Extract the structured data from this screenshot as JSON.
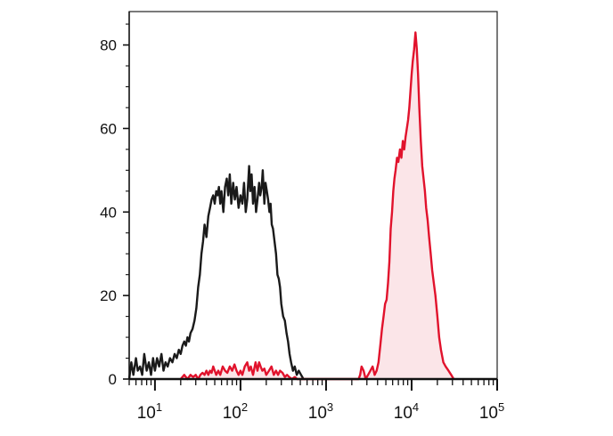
{
  "chart_data": {
    "type": "area",
    "title": "",
    "xlabel": "",
    "ylabel": "",
    "x_scale": "log",
    "xlim": [
      5,
      100000
    ],
    "ylim": [
      0,
      88
    ],
    "yticks": [
      {
        "value": 0,
        "label": "0"
      },
      {
        "value": 20,
        "label": "20"
      },
      {
        "value": 40,
        "label": "40"
      },
      {
        "value": 60,
        "label": "60"
      },
      {
        "value": 80,
        "label": "80"
      }
    ],
    "xticks": [
      {
        "value": 10,
        "base": "10",
        "exp": "1"
      },
      {
        "value": 100,
        "base": "10",
        "exp": "2"
      },
      {
        "value": 1000,
        "base": "10",
        "exp": "3"
      },
      {
        "value": 10000,
        "base": "10",
        "exp": "4"
      },
      {
        "value": 100000,
        "base": "10",
        "exp": "5"
      }
    ],
    "grid": false,
    "series": [
      {
        "color": "#1a1a1a",
        "fill": "none",
        "points": [
          [
            5,
            0
          ],
          [
            5.3,
            4
          ],
          [
            5.6,
            1
          ],
          [
            6,
            5
          ],
          [
            6.3,
            2
          ],
          [
            6.7,
            3
          ],
          [
            7.1,
            1
          ],
          [
            7.5,
            6
          ],
          [
            8,
            2
          ],
          [
            8.5,
            4
          ],
          [
            9,
            1
          ],
          [
            9.5,
            5
          ],
          [
            10,
            2
          ],
          [
            10.6,
            5
          ],
          [
            11.2,
            3
          ],
          [
            11.9,
            6
          ],
          [
            12.6,
            2
          ],
          [
            13.3,
            4
          ],
          [
            14.1,
            3
          ],
          [
            15,
            5
          ],
          [
            16,
            4
          ],
          [
            17,
            6
          ],
          [
            18,
            5
          ],
          [
            19,
            7
          ],
          [
            20,
            6
          ],
          [
            21,
            8
          ],
          [
            22,
            9
          ],
          [
            23,
            8
          ],
          [
            24,
            10
          ],
          [
            25,
            9
          ],
          [
            26,
            11
          ],
          [
            27.5,
            12
          ],
          [
            29,
            14
          ],
          [
            30.5,
            17
          ],
          [
            32,
            22
          ],
          [
            33.5,
            25
          ],
          [
            35,
            30
          ],
          [
            36.5,
            33
          ],
          [
            38,
            37
          ],
          [
            40,
            34
          ],
          [
            42,
            39
          ],
          [
            44,
            41
          ],
          [
            46,
            43
          ],
          [
            48,
            44
          ],
          [
            50,
            42
          ],
          [
            52,
            45
          ],
          [
            54,
            44
          ],
          [
            56,
            46
          ],
          [
            58,
            42
          ],
          [
            60,
            45
          ],
          [
            63,
            40
          ],
          [
            66,
            46
          ],
          [
            69,
            48
          ],
          [
            72,
            44
          ],
          [
            75,
            49
          ],
          [
            78,
            42
          ],
          [
            82,
            47
          ],
          [
            86,
            43
          ],
          [
            90,
            46
          ],
          [
            95,
            41
          ],
          [
            100,
            44
          ],
          [
            105,
            42
          ],
          [
            110,
            47
          ],
          [
            115,
            40
          ],
          [
            120,
            43
          ],
          [
            126,
            51
          ],
          [
            130,
            45
          ],
          [
            135,
            49
          ],
          [
            140,
            42
          ],
          [
            146,
            46
          ],
          [
            152,
            40
          ],
          [
            158,
            43
          ],
          [
            165,
            47
          ],
          [
            170,
            44
          ],
          [
            177,
            46
          ],
          [
            182,
            50
          ],
          [
            190,
            42
          ],
          [
            196,
            47
          ],
          [
            203,
            45
          ],
          [
            210,
            43
          ],
          [
            218,
            40
          ],
          [
            225,
            42
          ],
          [
            232,
            37
          ],
          [
            240,
            36
          ],
          [
            250,
            33
          ],
          [
            260,
            30
          ],
          [
            270,
            25
          ],
          [
            280,
            24
          ],
          [
            290,
            22
          ],
          [
            300,
            18
          ],
          [
            315,
            15
          ],
          [
            330,
            14
          ],
          [
            345,
            11
          ],
          [
            360,
            9
          ],
          [
            375,
            6
          ],
          [
            390,
            4
          ],
          [
            410,
            2
          ],
          [
            430,
            3
          ],
          [
            455,
            1
          ],
          [
            480,
            2
          ],
          [
            510,
            1
          ],
          [
            545,
            0
          ]
        ]
      },
      {
        "color": "#e1122c",
        "fill": "#fbe5e8",
        "points": [
          [
            20,
            0
          ],
          [
            22,
            1
          ],
          [
            24,
            0
          ],
          [
            26,
            1
          ],
          [
            28,
            0.5
          ],
          [
            30,
            1
          ],
          [
            32,
            0
          ],
          [
            34,
            1
          ],
          [
            36,
            1.5
          ],
          [
            38,
            1
          ],
          [
            40,
            2
          ],
          [
            42,
            1
          ],
          [
            44,
            2
          ],
          [
            46,
            1.5
          ],
          [
            48,
            3
          ],
          [
            50,
            2
          ],
          [
            52,
            1
          ],
          [
            55,
            2
          ],
          [
            58,
            1
          ],
          [
            62,
            3
          ],
          [
            66,
            2
          ],
          [
            70,
            1.5
          ],
          [
            75,
            3
          ],
          [
            80,
            2
          ],
          [
            85,
            3.5
          ],
          [
            90,
            2
          ],
          [
            95,
            1
          ],
          [
            100,
            2
          ],
          [
            105,
            1
          ],
          [
            112,
            3
          ],
          [
            120,
            4
          ],
          [
            126,
            2
          ],
          [
            132,
            3
          ],
          [
            140,
            1
          ],
          [
            150,
            4
          ],
          [
            158,
            2
          ],
          [
            165,
            4
          ],
          [
            172,
            3
          ],
          [
            180,
            2
          ],
          [
            190,
            2.5
          ],
          [
            200,
            1
          ],
          [
            215,
            2
          ],
          [
            230,
            3
          ],
          [
            245,
            1
          ],
          [
            260,
            2
          ],
          [
            275,
            1
          ],
          [
            290,
            2
          ],
          [
            310,
            1.5
          ],
          [
            330,
            0.5
          ],
          [
            350,
            1
          ],
          [
            370,
            0.5
          ],
          [
            400,
            0
          ],
          [
            430,
            0.5
          ],
          [
            460,
            0
          ],
          [
            2400,
            0
          ],
          [
            2500,
            1
          ],
          [
            2600,
            3
          ],
          [
            2750,
            2
          ],
          [
            2900,
            0
          ],
          [
            3100,
            1
          ],
          [
            3300,
            2
          ],
          [
            3500,
            3
          ],
          [
            3700,
            1
          ],
          [
            3900,
            2
          ],
          [
            4100,
            4
          ],
          [
            4300,
            8
          ],
          [
            4500,
            12
          ],
          [
            4700,
            15
          ],
          [
            4900,
            18
          ],
          [
            5100,
            19
          ],
          [
            5300,
            23
          ],
          [
            5500,
            28
          ],
          [
            5700,
            36
          ],
          [
            5900,
            40
          ],
          [
            6100,
            45
          ],
          [
            6300,
            48
          ],
          [
            6500,
            50
          ],
          [
            6750,
            53
          ],
          [
            7000,
            52
          ],
          [
            7300,
            55
          ],
          [
            7600,
            53
          ],
          [
            7900,
            57
          ],
          [
            8200,
            55
          ],
          [
            8500,
            58
          ],
          [
            8800,
            60
          ],
          [
            9100,
            62
          ],
          [
            9400,
            65
          ],
          [
            9700,
            69
          ],
          [
            10000,
            73
          ],
          [
            10300,
            76
          ],
          [
            10700,
            79
          ],
          [
            11100,
            83
          ],
          [
            11500,
            79
          ],
          [
            11900,
            73
          ],
          [
            12300,
            65
          ],
          [
            12800,
            57
          ],
          [
            13300,
            51
          ],
          [
            13800,
            48
          ],
          [
            14300,
            45
          ],
          [
            14800,
            41
          ],
          [
            15400,
            38
          ],
          [
            16000,
            34
          ],
          [
            16700,
            30
          ],
          [
            17400,
            26
          ],
          [
            18200,
            23
          ],
          [
            19000,
            20
          ],
          [
            20000,
            15
          ],
          [
            21000,
            10
          ],
          [
            22000,
            7
          ],
          [
            23500,
            4
          ],
          [
            25000,
            3
          ],
          [
            27000,
            2
          ],
          [
            29000,
            1
          ],
          [
            31000,
            0
          ]
        ]
      }
    ]
  }
}
